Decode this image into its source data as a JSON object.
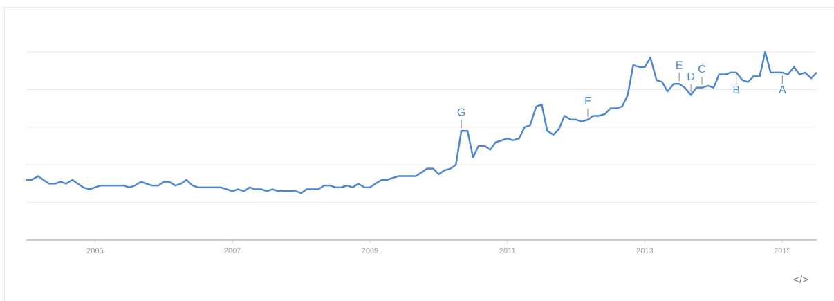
{
  "chart_data": {
    "type": "line",
    "x": [
      2004,
      2004.08,
      2004.17,
      2004.25,
      2004.33,
      2004.42,
      2004.5,
      2004.58,
      2004.67,
      2004.75,
      2004.83,
      2004.92,
      2005,
      2005.08,
      2005.17,
      2005.25,
      2005.33,
      2005.42,
      2005.5,
      2005.58,
      2005.67,
      2005.75,
      2005.83,
      2005.92,
      2006,
      2006.08,
      2006.17,
      2006.25,
      2006.33,
      2006.42,
      2006.5,
      2006.58,
      2006.67,
      2006.75,
      2006.83,
      2006.92,
      2007,
      2007.08,
      2007.17,
      2007.25,
      2007.33,
      2007.42,
      2007.5,
      2007.58,
      2007.67,
      2007.75,
      2007.83,
      2007.92,
      2008,
      2008.08,
      2008.17,
      2008.25,
      2008.33,
      2008.42,
      2008.5,
      2008.58,
      2008.67,
      2008.75,
      2008.83,
      2008.92,
      2009,
      2009.08,
      2009.17,
      2009.25,
      2009.33,
      2009.42,
      2009.5,
      2009.58,
      2009.67,
      2009.75,
      2009.83,
      2009.92,
      2010,
      2010.08,
      2010.17,
      2010.25,
      2010.33,
      2010.42,
      2010.5,
      2010.58,
      2010.67,
      2010.75,
      2010.83,
      2010.92,
      2011,
      2011.08,
      2011.17,
      2011.25,
      2011.33,
      2011.42,
      2011.5,
      2011.58,
      2011.67,
      2011.75,
      2011.83,
      2011.92,
      2012,
      2012.08,
      2012.17,
      2012.25,
      2012.33,
      2012.42,
      2012.5,
      2012.58,
      2012.67,
      2012.75,
      2012.83,
      2012.92,
      2013,
      2013.08,
      2013.17,
      2013.25,
      2013.33,
      2013.42,
      2013.5,
      2013.58,
      2013.67,
      2013.75,
      2013.83,
      2013.92,
      2014,
      2014.08,
      2014.17,
      2014.25,
      2014.33,
      2014.42,
      2014.5,
      2014.58,
      2014.67,
      2014.75,
      2014.83,
      2014.92,
      2015,
      2015.08,
      2015.17,
      2015.25,
      2015.33,
      2015.42,
      2015.5
    ],
    "series": [
      {
        "color": "#4f86d1",
        "values": [
          32,
          32,
          34,
          32,
          30,
          30,
          31,
          30,
          32,
          30,
          28,
          27,
          28,
          29,
          29,
          29,
          29,
          29,
          28,
          29,
          31,
          30,
          29,
          29,
          31,
          31,
          29,
          30,
          32,
          29,
          28,
          28,
          28,
          28,
          28,
          27,
          26,
          27,
          26,
          28,
          27,
          27,
          26,
          27,
          26,
          26,
          26,
          26,
          25,
          27,
          27,
          27,
          29,
          29,
          28,
          28,
          29,
          28,
          30,
          28,
          28,
          30,
          32,
          32,
          33,
          34,
          34,
          34,
          34,
          36,
          38,
          38,
          35,
          37,
          38,
          40,
          58,
          58,
          44,
          50,
          50,
          48,
          52,
          53,
          54,
          53,
          54,
          60,
          61,
          71,
          72,
          58,
          56,
          59,
          66,
          64,
          64,
          63,
          64,
          66,
          66,
          67,
          70,
          70,
          71,
          77,
          93,
          92,
          92,
          97,
          85,
          84,
          79,
          83,
          83,
          81,
          77,
          81,
          81,
          82,
          81,
          88,
          88,
          89,
          89,
          85,
          84,
          87,
          87,
          100,
          89,
          89,
          89,
          88,
          92,
          88,
          89,
          86,
          89
        ]
      }
    ],
    "xlim": [
      2004,
      2015.5
    ],
    "xticks": [
      2005,
      2007,
      2009,
      2011,
      2013,
      2015
    ],
    "ylim": [
      0,
      100
    ],
    "yticks": [
      0,
      20,
      40,
      60,
      80,
      100
    ],
    "grid": true,
    "annotations": [
      {
        "label": "G",
        "x": 2010.33,
        "side": "above"
      },
      {
        "label": "F",
        "x": 2012.17,
        "side": "above"
      },
      {
        "label": "E",
        "x": 2013.5,
        "side": "above"
      },
      {
        "label": "D",
        "x": 2013.67,
        "side": "above"
      },
      {
        "label": "C",
        "x": 2013.83,
        "side": "above"
      },
      {
        "label": "B",
        "x": 2014.33,
        "side": "below"
      },
      {
        "label": "A",
        "x": 2015,
        "side": "below"
      }
    ],
    "embed_label": "</>"
  }
}
